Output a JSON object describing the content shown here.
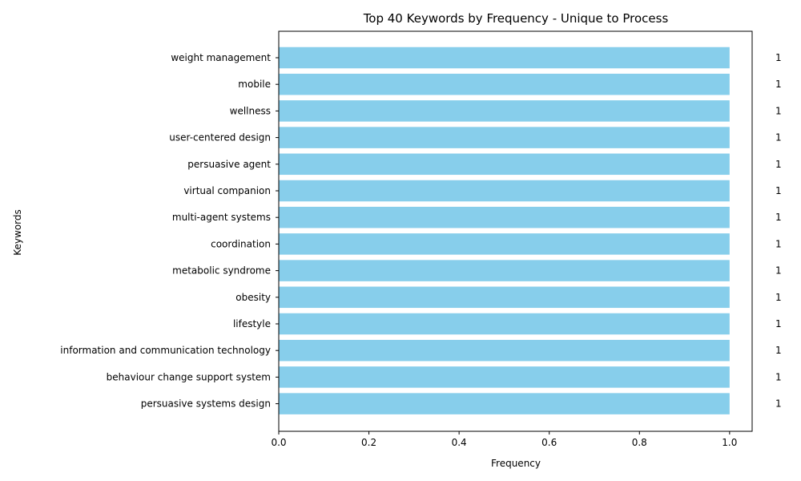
{
  "chart_data": {
    "type": "bar",
    "orientation": "horizontal",
    "title": "Top 40 Keywords by Frequency - Unique to Process",
    "xlabel": "Frequency",
    "ylabel": "Keywords",
    "xlim": [
      0,
      1.05
    ],
    "xticks": [
      "0.0",
      "0.2",
      "0.4",
      "0.6",
      "0.8",
      "1.0"
    ],
    "bar_color": "#87ceeb",
    "grid": false,
    "legend": "none",
    "categories": [
      "weight management",
      "mobile",
      "wellness",
      "user-centered design",
      "persuasive agent",
      "virtual companion",
      "multi-agent systems",
      "coordination",
      "metabolic syndrome",
      "obesity",
      "lifestyle",
      "information and communication technology",
      "behaviour change support system",
      "persuasive systems design"
    ],
    "values": [
      1,
      1,
      1,
      1,
      1,
      1,
      1,
      1,
      1,
      1,
      1,
      1,
      1,
      1
    ],
    "data_labels": [
      "1",
      "1",
      "1",
      "1",
      "1",
      "1",
      "1",
      "1",
      "1",
      "1",
      "1",
      "1",
      "1",
      "1"
    ]
  }
}
